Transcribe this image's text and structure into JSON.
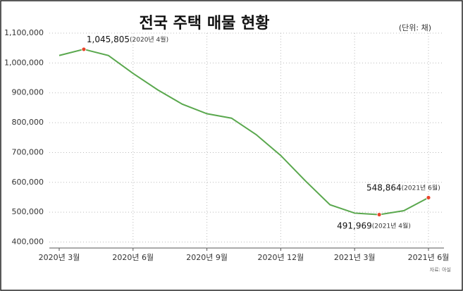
{
  "chart_data": {
    "type": "line",
    "title": "전국 주택 매물 현황",
    "unit": "(단위: 채)",
    "source": "자료: 아실",
    "categories": [
      "2020년 3월",
      null,
      null,
      "2020년 6월",
      null,
      null,
      "2020년 9월",
      null,
      null,
      "2020년 12월",
      null,
      null,
      "2021년 3월",
      null,
      null,
      "2021년 6월"
    ],
    "series": [
      {
        "name": "주택 매물",
        "color": "#5aa84e",
        "values": [
          1025000,
          1045805,
          1025000,
          965000,
          910000,
          862000,
          830000,
          815000,
          760000,
          690000,
          605000,
          525000,
          497000,
          491969,
          505000,
          548864
        ],
        "value_labels": [
          null,
          "1,045,805",
          null,
          null,
          null,
          null,
          null,
          null,
          null,
          null,
          null,
          null,
          null,
          "491,969",
          null,
          "548,864"
        ],
        "label_notes": [
          null,
          "(2020년 4월)",
          null,
          null,
          null,
          null,
          null,
          null,
          null,
          null,
          null,
          null,
          null,
          "(2021년 4월)",
          null,
          "(2021년 6월)"
        ]
      }
    ],
    "marker_color": "#e8452c",
    "ylim": [
      380000,
      1100000
    ],
    "yticks": [
      {
        "value": 400000,
        "label": "400,000"
      },
      {
        "value": 500000,
        "label": "500,000"
      },
      {
        "value": 600000,
        "label": "600,000"
      },
      {
        "value": 700000,
        "label": "700,000"
      },
      {
        "value": 800000,
        "label": "800,000"
      },
      {
        "value": 900000,
        "label": "900,000"
      },
      {
        "value": 1000000,
        "label": "1,000,000"
      },
      {
        "value": 1100000,
        "label": "1,100,000"
      }
    ],
    "grid": true
  }
}
